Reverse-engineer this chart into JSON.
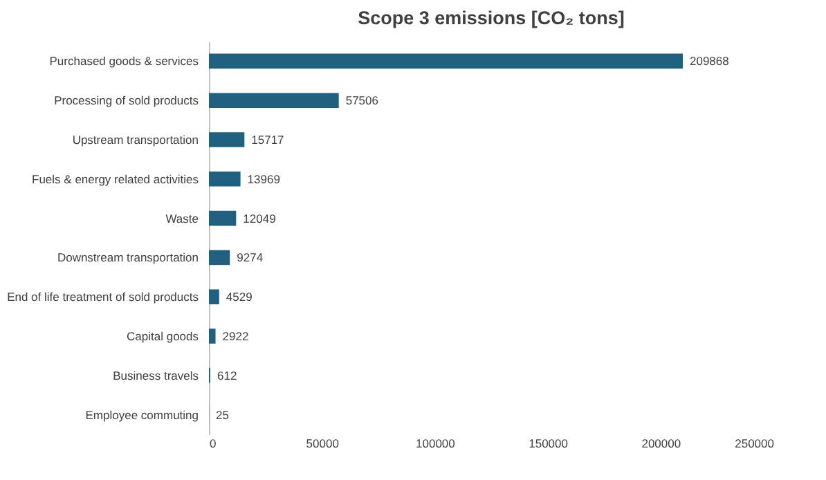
{
  "chart_data": {
    "type": "bar",
    "orientation": "horizontal",
    "title": "Scope 3 emissions [CO₂ tons]",
    "categories": [
      "Purchased goods & services",
      "Processing of sold products",
      "Upstream transportation",
      "Fuels & energy related activities",
      "Waste",
      "Downstream transportation",
      "End of life treatment of sold products",
      "Capital goods",
      "Business travels",
      "Employee commuting"
    ],
    "values": [
      209868,
      57506,
      15717,
      13969,
      12049,
      9274,
      4529,
      2922,
      612,
      25
    ],
    "color": "#215f7e",
    "xlim": [
      0,
      250000
    ],
    "xticks": [
      0,
      50000,
      100000,
      150000,
      200000,
      250000
    ],
    "data_labels": true
  }
}
